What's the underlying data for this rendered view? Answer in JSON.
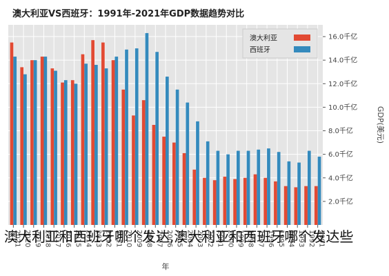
{
  "caption": "澳大利亚和西班牙哪个发达,澳大利亚和西班牙哪个发达些",
  "chart_data": {
    "type": "bar",
    "title": "澳大利亚VS西班牙：1991年-2021年GDP数据趋势对比",
    "xlabel": "年",
    "ylabel": "GDP(美元)",
    "yticks": [
      {
        "value": 0.2,
        "label": "2.0千亿"
      },
      {
        "value": 0.4,
        "label": "4.0千亿"
      },
      {
        "value": 0.6,
        "label": "6.0千亿"
      },
      {
        "value": 0.8,
        "label": "8.0千亿"
      },
      {
        "value": 1.0,
        "label": "10.0千亿"
      },
      {
        "value": 1.2,
        "label": "12.0千亿"
      },
      {
        "value": 1.4,
        "label": "14.0千亿"
      },
      {
        "value": 1.6,
        "label": "16.0千亿"
      }
    ],
    "ylim": [
      0,
      1.7
    ],
    "categories": [
      "2021",
      "2020",
      "2019",
      "2018",
      "2017",
      "2016",
      "2015",
      "2014",
      "2013",
      "2012",
      "2011",
      "2010",
      "2009",
      "2008",
      "2007",
      "2006",
      "2005",
      "2004",
      "2003",
      "2002",
      "2001",
      "2000",
      "1999",
      "1998",
      "1997",
      "1996",
      "1995",
      "1994",
      "1993",
      "1992",
      "1991"
    ],
    "series": [
      {
        "name": "澳大利亚",
        "color": "#e24a33",
        "values": [
          1.55,
          1.34,
          1.4,
          1.43,
          1.33,
          1.21,
          1.23,
          1.45,
          1.57,
          1.55,
          1.4,
          1.15,
          0.93,
          1.06,
          0.85,
          0.75,
          0.7,
          0.61,
          0.47,
          0.4,
          0.38,
          0.41,
          0.39,
          0.4,
          0.43,
          0.4,
          0.37,
          0.33,
          0.32,
          0.33,
          0.33
        ]
      },
      {
        "name": "西班牙",
        "color": "#348abd",
        "values": [
          1.43,
          1.28,
          1.4,
          1.43,
          1.31,
          1.23,
          1.2,
          1.37,
          1.36,
          1.33,
          1.43,
          1.49,
          1.5,
          1.63,
          1.47,
          1.26,
          1.15,
          1.04,
          0.88,
          0.71,
          0.63,
          0.6,
          0.63,
          0.63,
          0.64,
          0.65,
          0.62,
          0.54,
          0.53,
          0.63,
          0.58
        ]
      }
    ],
    "legend": {
      "position": "top-right"
    },
    "grid": true
  }
}
